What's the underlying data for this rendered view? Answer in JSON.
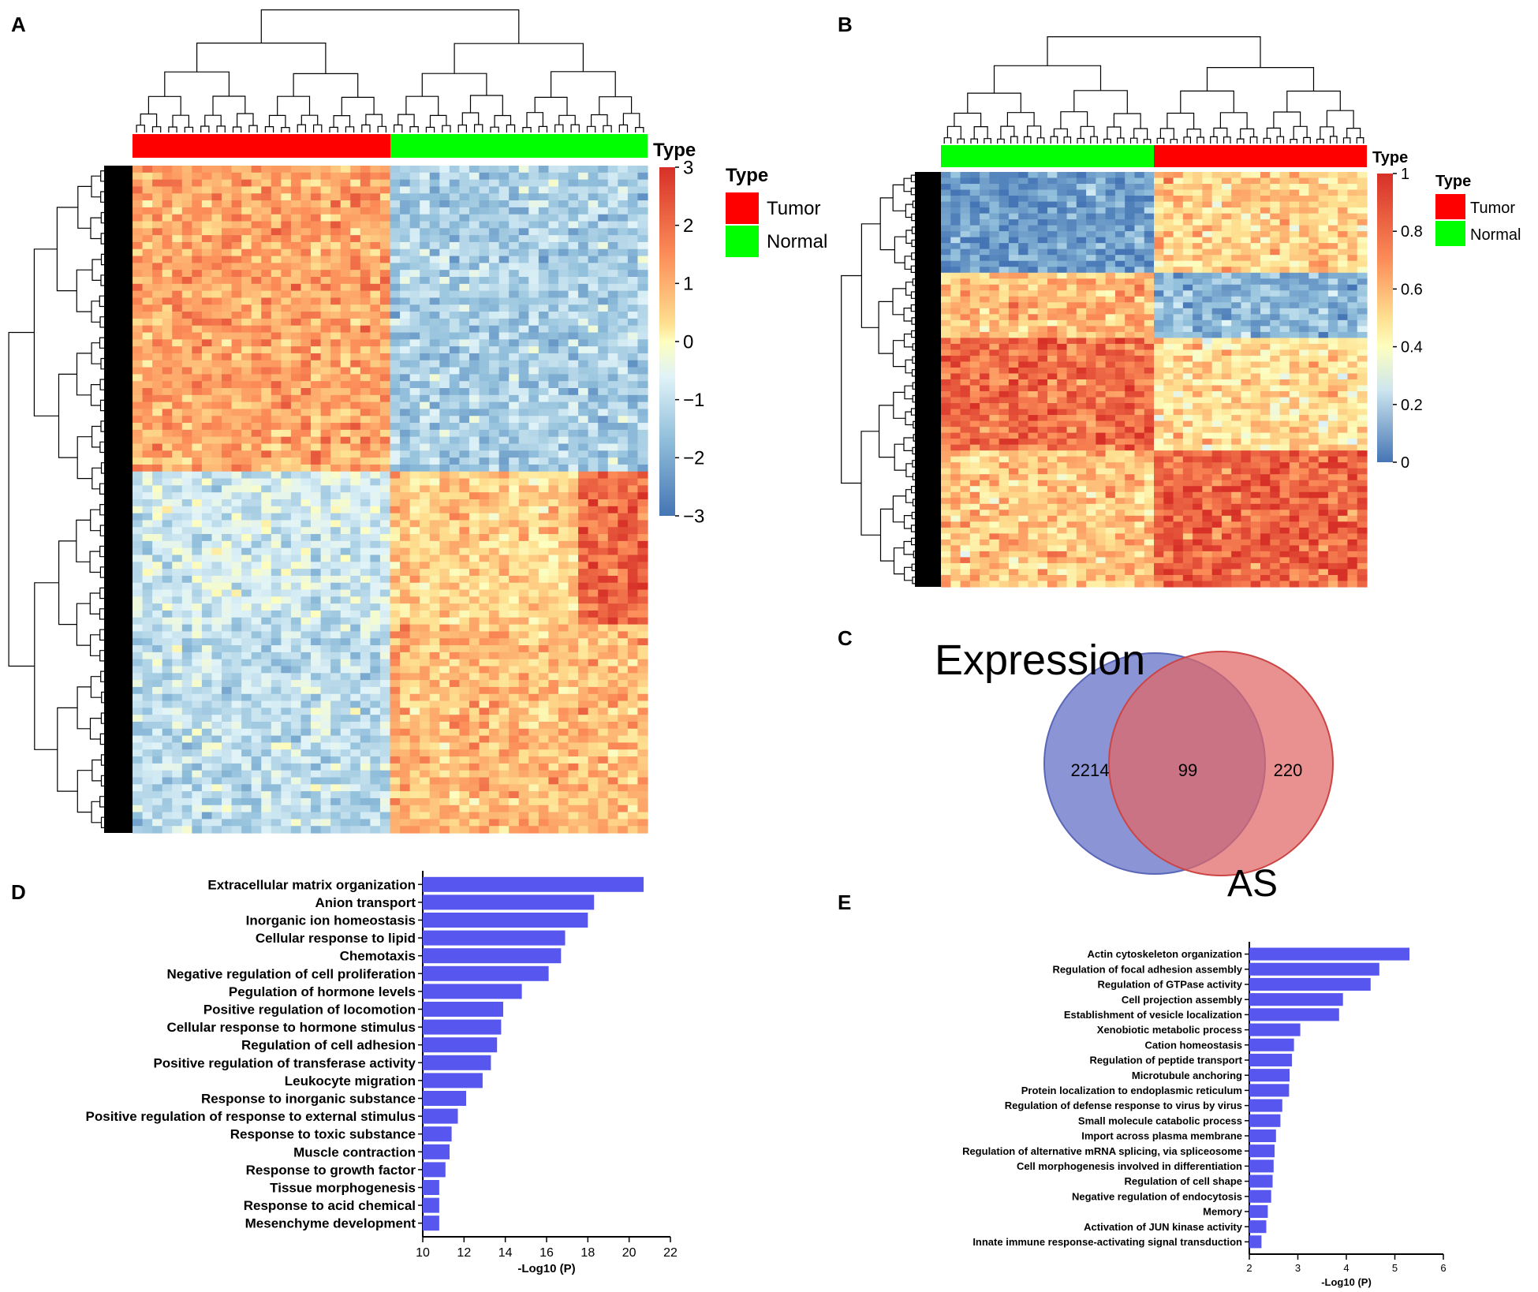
{
  "panels": {
    "A": "A",
    "B": "B",
    "C": "C",
    "D": "D",
    "E": "E"
  },
  "heatmap_a": {
    "annotation_label": "Type",
    "colorbar_ticks": [
      "3",
      "2",
      "1",
      "0",
      "−1",
      "−2",
      "−3"
    ],
    "legend": {
      "title": "Type",
      "items": [
        {
          "label": "Tumor",
          "color": "#ff0000"
        },
        {
          "label": "Normal",
          "color": "#00ff00"
        }
      ]
    },
    "colors": {
      "high": "#d73027",
      "mid": "#fdfebf",
      "low": "#4575b4"
    }
  },
  "heatmap_b": {
    "annotation_label": "Type",
    "colorbar_ticks": [
      "1",
      "0.8",
      "0.6",
      "0.4",
      "0.2",
      "0"
    ],
    "legend": {
      "title": "Type",
      "items": [
        {
          "label": "Tumor",
          "color": "#ff0000"
        },
        {
          "label": "Normal",
          "color": "#00ff00"
        }
      ]
    }
  },
  "venn": {
    "left_label": "Expression",
    "right_label": "AS",
    "left_only": "2214",
    "overlap": "99",
    "right_only": "220",
    "left_color": "#6a77c9",
    "right_color": "#e06666"
  },
  "chart_data": [
    {
      "panel": "D",
      "type": "bar",
      "orientation": "horizontal",
      "xlabel": "-Log10 (P)",
      "xlim": [
        10,
        22
      ],
      "xticks": [
        "10",
        "12",
        "14",
        "16",
        "18",
        "20",
        "22"
      ],
      "bar_color": "#5757f0",
      "categories": [
        "Extracellular matrix organization",
        "Anion transport",
        "Inorganic ion homeostasis",
        "Cellular response to lipid",
        "Chemotaxis",
        "Negative regulation of cell proliferation",
        "Pegulation of hormone levels",
        "Positive regulation of locomotion",
        "Cellular response to hormone stimulus",
        "Regulation of cell adhesion",
        "Positive regulation of transferase activity",
        "Leukocyte migration",
        "Response to inorganic substance",
        "Positive regulation of response to external stimulus",
        "Response to toxic substance",
        "Muscle contraction",
        "Response to growth factor",
        "Tissue morphogenesis",
        "Response to acid chemical",
        "Mesenchyme development"
      ],
      "values": [
        20.7,
        18.3,
        18.0,
        16.9,
        16.7,
        16.1,
        14.8,
        13.9,
        13.8,
        13.6,
        13.3,
        12.9,
        12.1,
        11.7,
        11.4,
        11.3,
        11.1,
        10.8,
        10.8,
        10.8
      ]
    },
    {
      "panel": "E",
      "type": "bar",
      "orientation": "horizontal",
      "xlabel": "-Log10 (P)",
      "xlim": [
        2,
        6
      ],
      "xticks": [
        "2",
        "3",
        "4",
        "5",
        "6"
      ],
      "bar_color": "#5757f0",
      "categories": [
        "Actin cytoskeleton organization",
        "Regulation of focal adhesion assembly",
        "Regulation of GTPase activity",
        "Cell projection assembly",
        "Establishment of vesicle localization",
        "Xenobiotic metabolic process",
        "Cation homeostasis",
        "Regulation of peptide transport",
        "Microtubule anchoring",
        "Protein localization to endoplasmic reticulum",
        "Regulation of defense response to virus by virus",
        "Small molecule catabolic process",
        "Import across plasma membrane",
        "Regulation of alternative mRNA splicing, via spliceosome",
        "Cell morphogenesis involved in differentiation",
        "Regulation of cell shape",
        "Negative regulation of endocytosis",
        "Memory",
        "Activation of JUN kinase activity",
        "Innate immune response-activating signal transduction"
      ],
      "values": [
        5.3,
        4.68,
        4.5,
        3.93,
        3.85,
        3.05,
        2.92,
        2.88,
        2.83,
        2.82,
        2.68,
        2.64,
        2.55,
        2.52,
        2.5,
        2.48,
        2.45,
        2.38,
        2.35,
        2.25
      ]
    }
  ]
}
